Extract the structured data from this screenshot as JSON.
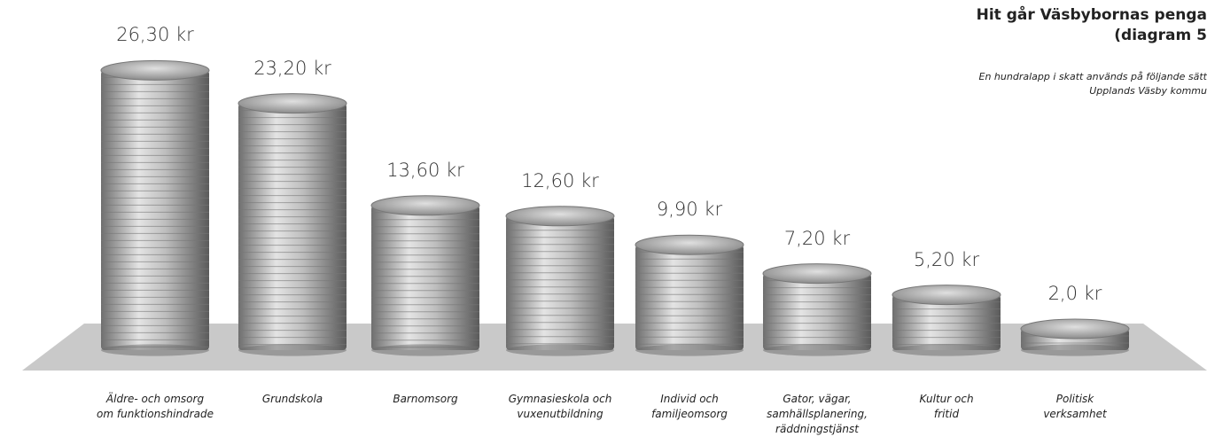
{
  "chart_data": {
    "type": "coin-stack",
    "title": [
      "Hit går Väsbybornas penga",
      "(diagram 5"
    ],
    "subtitle": [
      "En hundralapp i skatt används på följande sätt",
      "Upplands Väsby kommu"
    ],
    "categories": [
      "Äldre- och omsorg\nom funktionshindrade",
      "Grundskola",
      "Barnomsorg",
      "Gymnasieskola och\nvuxenutbildning",
      "Individ och\nfamiljeomsorg",
      "Gator, vägar,\nsamhällsplanering,\nräddningstjänst",
      "Kultur och\nfritid",
      "Politisk\nverksamhet"
    ],
    "values": [
      26.3,
      23.2,
      13.6,
      12.6,
      9.9,
      7.2,
      5.2,
      2.0
    ],
    "value_labels": [
      "26,30 kr",
      "23,20 kr",
      "13,60 kr",
      "12,60 kr",
      "9,90 kr",
      "7,20 kr",
      "5,20 kr",
      "2,0 kr"
    ],
    "color": "#a8a8a8"
  }
}
